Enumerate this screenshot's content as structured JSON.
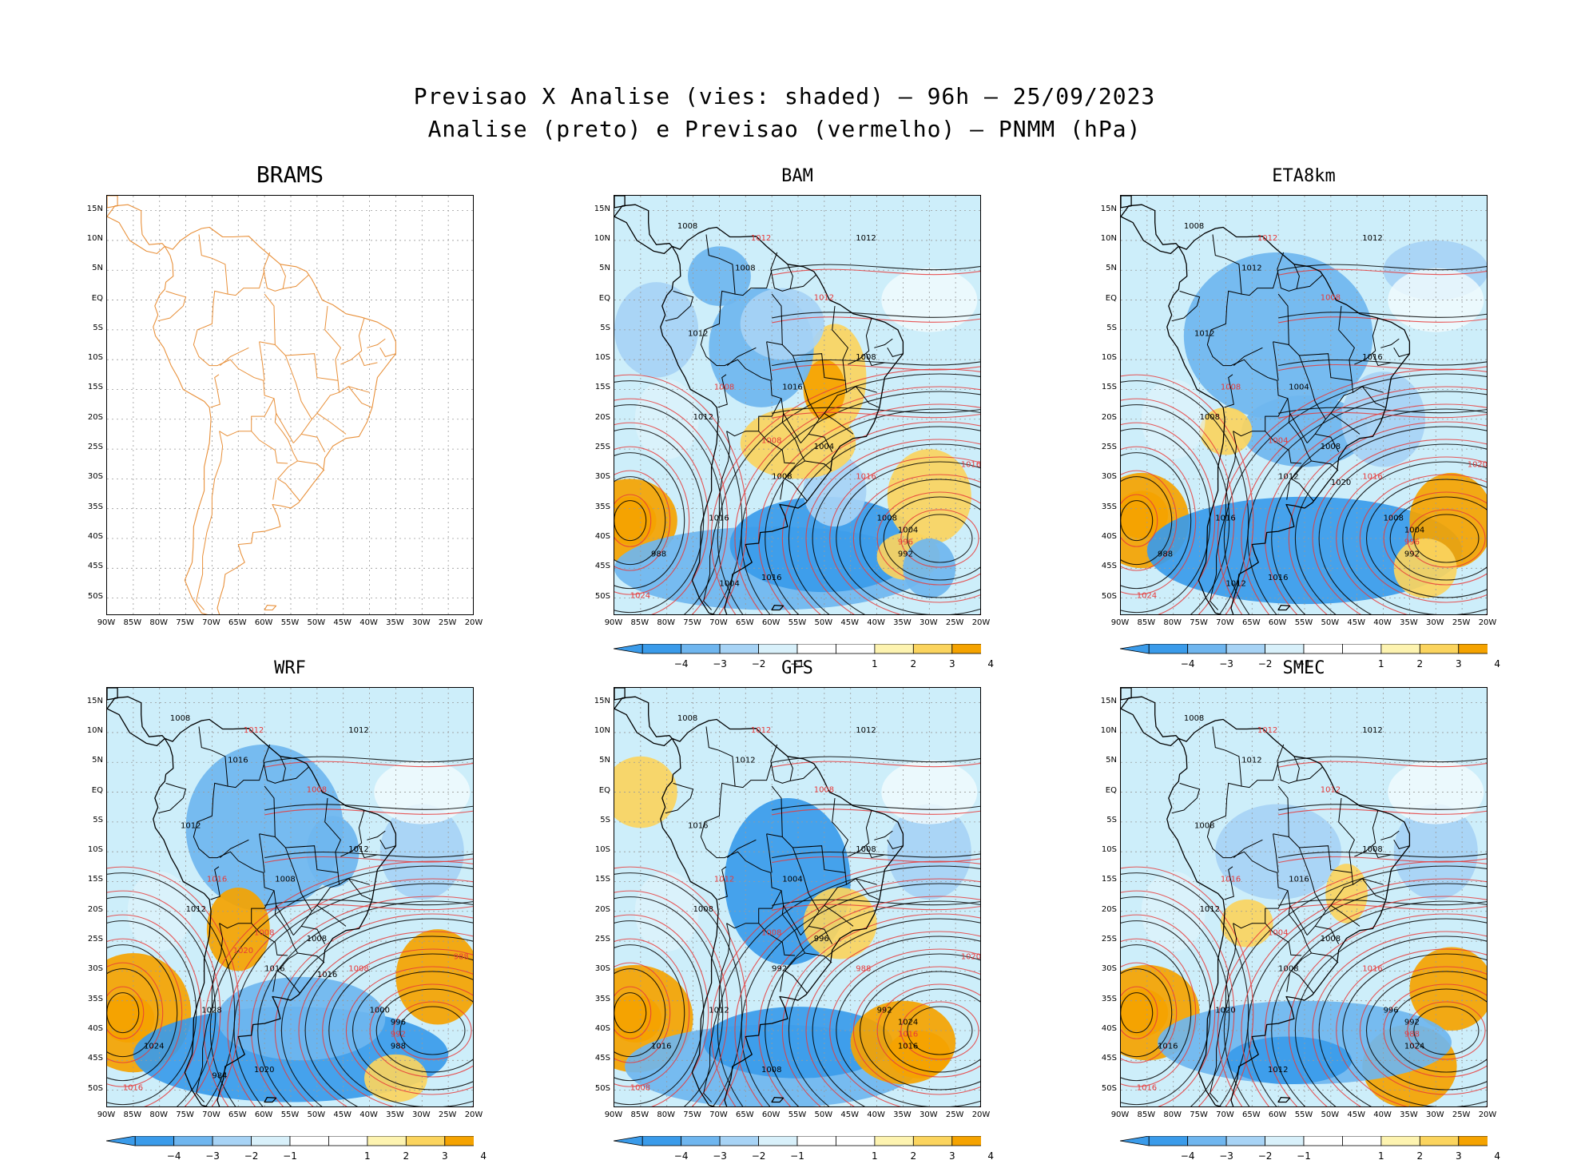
{
  "header": {
    "title_line1": "Previsao X Analise (vies: shaded) – 96h – 25/09/2023",
    "title_line2": "Analise (preto) e Previsao (vermelho) – PNMM (hPa)"
  },
  "axes": {
    "lat_labels": [
      "15N",
      "10N",
      "5N",
      "EQ",
      "5S",
      "10S",
      "15S",
      "20S",
      "25S",
      "30S",
      "35S",
      "40S",
      "45S",
      "50S"
    ],
    "lon_labels": [
      "90W",
      "85W",
      "80W",
      "75W",
      "70W",
      "65W",
      "60W",
      "55W",
      "50W",
      "45W",
      "40W",
      "35W",
      "30W",
      "25W",
      "20W"
    ]
  },
  "colorbar": {
    "ticks": [
      "−4",
      "−3",
      "−2",
      "−1",
      "1",
      "2",
      "3",
      "4"
    ],
    "colors": [
      "#3a9bea",
      "#6fb6ef",
      "#a7d3f5",
      "#d8f0fa",
      "#ffffff",
      "#fdf3b0",
      "#fbd45e",
      "#f5a300"
    ]
  },
  "colors": {
    "analysis_contour": "#000000",
    "forecast_contour": "#e83a3a",
    "coastline_brams": "#e8903a",
    "grid": "#9a9a9a"
  },
  "panels": [
    {
      "id": "brams",
      "title": "BRAMS",
      "has_data": false,
      "contour_labels": []
    },
    {
      "id": "bam",
      "title": "BAM",
      "has_data": true,
      "contour_labels": [
        "1008",
        "1012",
        "1012",
        "1008",
        "1012",
        "1012",
        "1008",
        "1008",
        "1016",
        "1012",
        "1008",
        "1004",
        "1008",
        "1016",
        "1008",
        "1004",
        "996",
        "992",
        "988",
        "1024",
        "1016",
        "1016",
        "1016",
        "1004"
      ]
    },
    {
      "id": "eta8km",
      "title": "ETA8km",
      "has_data": true,
      "contour_labels": [
        "1008",
        "1012",
        "1012",
        "1012",
        "1008",
        "1012",
        "1016",
        "1008",
        "1004",
        "1008",
        "1004",
        "1008",
        "1012",
        "1016",
        "1008",
        "1004",
        "996",
        "992",
        "988",
        "1024",
        "1016",
        "1016",
        "1020",
        "1012",
        "1020"
      ]
    },
    {
      "id": "wrf",
      "title": "WRF",
      "has_data": true,
      "contour_labels": [
        "1008",
        "1012",
        "1012",
        "1016",
        "1008",
        "1012",
        "1012",
        "1016",
        "1008",
        "1012",
        "1008",
        "1008",
        "1016",
        "1008",
        "1000",
        "996",
        "992",
        "988",
        "1024",
        "1016",
        "1020",
        "1028",
        "988",
        "984",
        "1016",
        "1020"
      ]
    },
    {
      "id": "gfs",
      "title": "GFS",
      "has_data": true,
      "contour_labels": [
        "1008",
        "1012",
        "1012",
        "1012",
        "1008",
        "1016",
        "1008",
        "1012",
        "1004",
        "1008",
        "1008",
        "996",
        "992",
        "988",
        "992",
        "1024",
        "1016",
        "1016",
        "1016",
        "1008",
        "1008",
        "1012",
        "1020"
      ]
    },
    {
      "id": "smec",
      "title": "SMEC",
      "has_data": true,
      "contour_labels": [
        "1008",
        "1012",
        "1012",
        "1012",
        "1012",
        "1008",
        "1008",
        "1016",
        "1016",
        "1012",
        "1004",
        "1008",
        "1008",
        "1016",
        "996",
        "992",
        "988",
        "1024",
        "1016",
        "1016",
        "1012",
        "1020"
      ]
    }
  ]
}
